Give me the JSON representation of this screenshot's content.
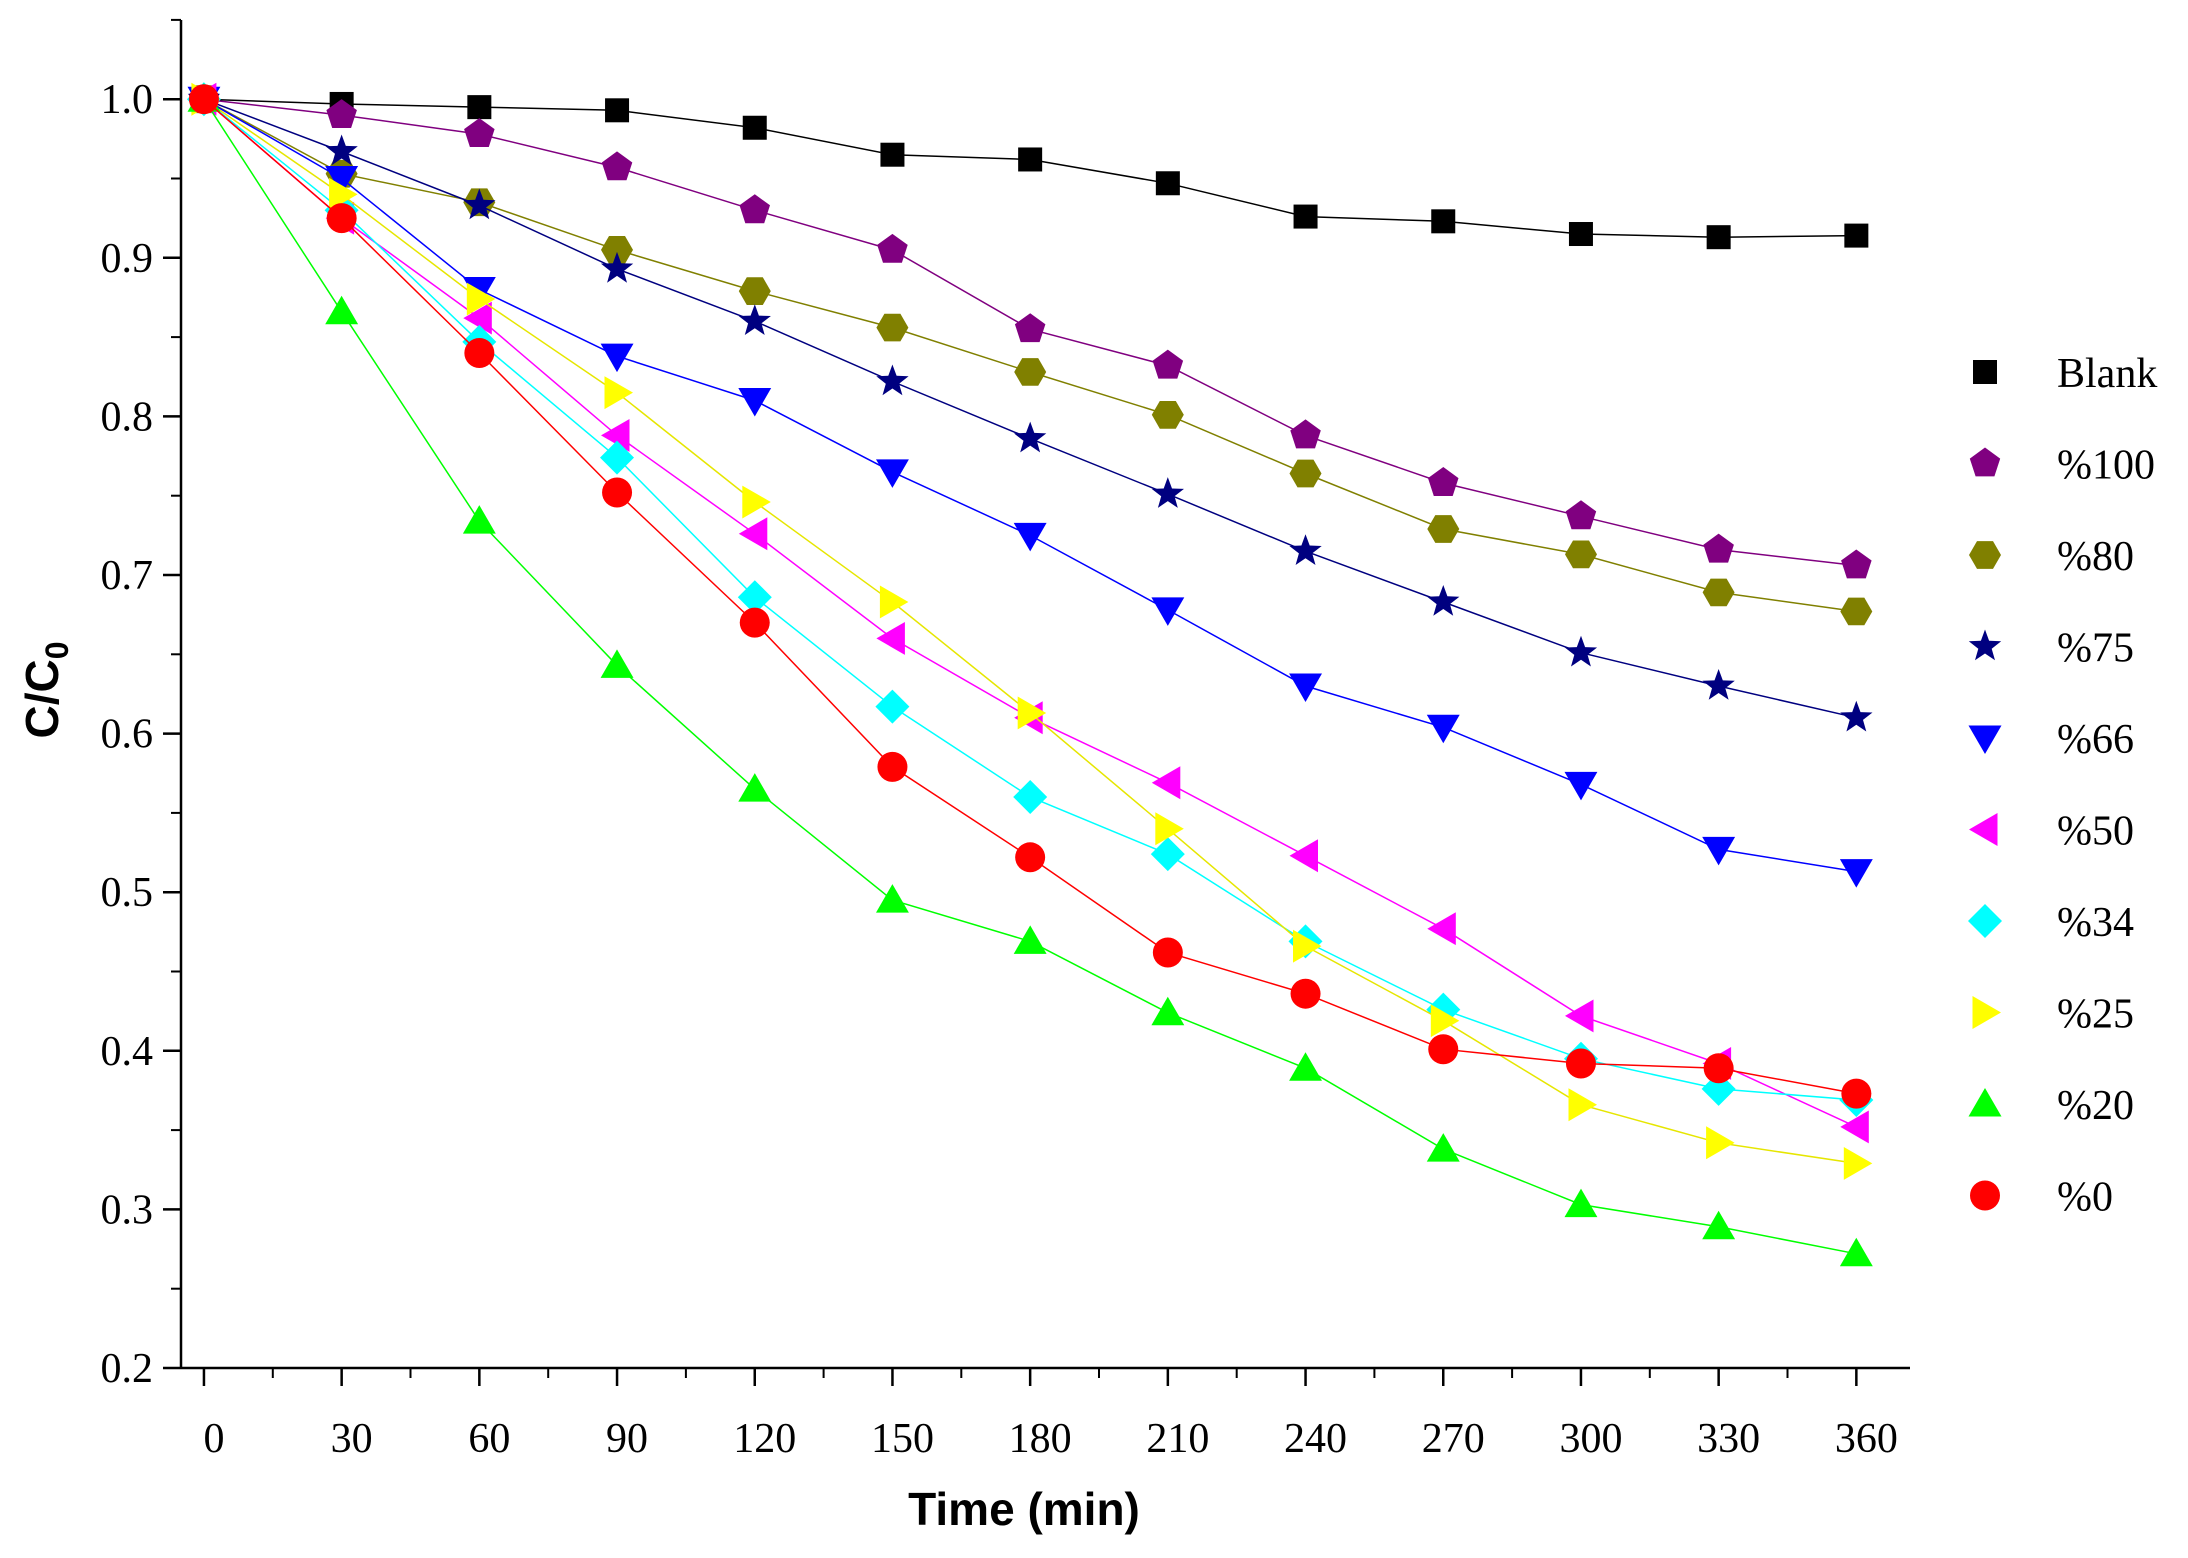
{
  "chart_data": {
    "type": "line",
    "title": "",
    "xlabel": "Time (min)",
    "ylabel_main": "C/C",
    "ylabel_sub": "0",
    "xlim": [
      -5,
      372
    ],
    "ylim": [
      0.2,
      1.05
    ],
    "x_ticks": [
      0,
      30,
      60,
      90,
      120,
      150,
      180,
      210,
      240,
      270,
      300,
      330,
      360
    ],
    "y_ticks": [
      0.2,
      0.3,
      0.4,
      0.5,
      0.6,
      0.7,
      0.8,
      0.9,
      1.0
    ],
    "y_tick_labels": [
      "0.2",
      "0.3",
      "0.4",
      "0.5",
      "0.6",
      "0.7",
      "0.8",
      "0.9",
      "1.0"
    ],
    "legend_position": "right",
    "x": [
      0,
      30,
      60,
      90,
      120,
      150,
      180,
      210,
      240,
      270,
      300,
      330,
      360
    ],
    "series": [
      {
        "name": "Blank",
        "marker": "square",
        "color": "#000000",
        "values": [
          1.0,
          0.997,
          0.995,
          0.993,
          0.982,
          0.965,
          0.962,
          0.947,
          0.926,
          0.923,
          0.915,
          0.913,
          0.914
        ]
      },
      {
        "name": "%100",
        "marker": "pentagon",
        "color": "#800080",
        "values": [
          1.0,
          0.99,
          0.978,
          0.957,
          0.93,
          0.905,
          0.855,
          0.832,
          0.788,
          0.758,
          0.737,
          0.716,
          0.706
        ]
      },
      {
        "name": "%80",
        "marker": "hexagon",
        "color": "#808000",
        "values": [
          1.0,
          0.953,
          0.935,
          0.905,
          0.879,
          0.856,
          0.828,
          0.801,
          0.764,
          0.729,
          0.713,
          0.689,
          0.677
        ]
      },
      {
        "name": "%75",
        "marker": "star",
        "color": "#000080",
        "values": [
          1.0,
          0.967,
          0.933,
          0.893,
          0.86,
          0.822,
          0.786,
          0.751,
          0.715,
          0.683,
          0.651,
          0.63,
          0.61
        ]
      },
      {
        "name": "%66",
        "marker": "triangle-down",
        "color": "#0000ff",
        "values": [
          1.0,
          0.95,
          0.88,
          0.838,
          0.81,
          0.765,
          0.725,
          0.678,
          0.63,
          0.604,
          0.568,
          0.527,
          0.513
        ]
      },
      {
        "name": "%50",
        "marker": "triangle-left",
        "color": "#ff00ff",
        "values": [
          1.0,
          0.925,
          0.862,
          0.788,
          0.726,
          0.66,
          0.61,
          0.569,
          0.523,
          0.477,
          0.422,
          0.392,
          0.352
        ]
      },
      {
        "name": "%34",
        "marker": "diamond",
        "color": "#00ffff",
        "values": [
          1.0,
          0.93,
          0.847,
          0.774,
          0.686,
          0.617,
          0.56,
          0.524,
          0.469,
          0.426,
          0.395,
          0.376,
          0.369
        ]
      },
      {
        "name": "%25",
        "marker": "triangle-right",
        "color": "#ffff00",
        "values": [
          1.0,
          0.94,
          0.874,
          0.815,
          0.746,
          0.683,
          0.613,
          0.54,
          0.466,
          0.419,
          0.366,
          0.342,
          0.329
        ]
      },
      {
        "name": "%20",
        "marker": "triangle-up",
        "color": "#00ff00",
        "values": [
          1.0,
          0.866,
          0.734,
          0.643,
          0.565,
          0.495,
          0.469,
          0.424,
          0.389,
          0.338,
          0.303,
          0.289,
          0.272
        ]
      },
      {
        "name": "%0",
        "marker": "circle",
        "color": "#ff0000",
        "values": [
          1.0,
          0.925,
          0.84,
          0.752,
          0.67,
          0.579,
          0.522,
          0.462,
          0.436,
          0.401,
          0.392,
          0.389,
          0.373
        ]
      }
    ]
  }
}
